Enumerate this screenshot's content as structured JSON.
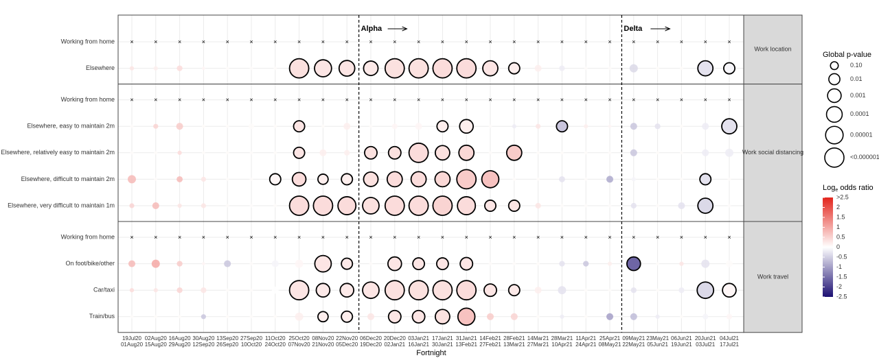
{
  "chart_data": {
    "type": "bubble-grid",
    "x_label": "Fortnight",
    "categories": [
      [
        "19Jul20",
        "01Aug20"
      ],
      [
        "02Aug20",
        "15Aug20"
      ],
      [
        "16Aug20",
        "29Aug20"
      ],
      [
        "30Aug20",
        "12Sep20"
      ],
      [
        "13Sep20",
        "26Sep20"
      ],
      [
        "27Sep20",
        "10Oct20"
      ],
      [
        "11Oct20",
        "24Oct20"
      ],
      [
        "25Oct20",
        "07Nov20"
      ],
      [
        "08Nov20",
        "21Nov20"
      ],
      [
        "22Nov20",
        "05Dec20"
      ],
      [
        "06Dec20",
        "19Dec20"
      ],
      [
        "20Dec20",
        "02Jan21"
      ],
      [
        "03Jan21",
        "16Jan21"
      ],
      [
        "17Jan21",
        "30Jan21"
      ],
      [
        "31Jan21",
        "13Feb21"
      ],
      [
        "14Feb21",
        "27Feb21"
      ],
      [
        "28Feb21",
        "13Mar21"
      ],
      [
        "14Mar21",
        "27Mar21"
      ],
      [
        "28Mar21",
        "10Apr21"
      ],
      [
        "11Apr21",
        "24Apr21"
      ],
      [
        "25Apr21",
        "08May21"
      ],
      [
        "09May21",
        "22May21"
      ],
      [
        "23May21",
        "05Jun21"
      ],
      [
        "06Jun21",
        "19Jun21"
      ],
      [
        "20Jun21",
        "03Jul21"
      ],
      [
        "04Jul21",
        "17Jul21"
      ]
    ],
    "annotations": [
      "Alpha",
      "Delta"
    ],
    "reference_marker": "×",
    "panels": [
      {
        "label": "Work location",
        "rows": [
          {
            "name": "Working from home",
            "reference": true
          },
          {
            "name": "Elsewhere",
            "log_odds": [
              0.3,
              0.2,
              0.4,
              0.1,
              0.05,
              0.05,
              0.05,
              0.35,
              0.3,
              0.3,
              0.25,
              0.35,
              0.35,
              0.4,
              0.4,
              0.3,
              0.2,
              0.2,
              -0.2,
              0.05,
              0.05,
              -0.4,
              0.05,
              0.05,
              -0.3,
              -0.1
            ],
            "p": [
              0.5,
              0.5,
              0.3,
              0.65,
              0.65,
              0.65,
              0.65,
              1e-06,
              2e-05,
              0.0001,
              0.0004,
              1e-06,
              1e-06,
              1e-06,
              1e-06,
              0.0002,
              0.01,
              0.17,
              0.3,
              0.65,
              0.65,
              0.08,
              0.65,
              0.65,
              0.0002,
              0.01
            ]
          }
        ]
      },
      {
        "label": "Work social distancing",
        "rows": [
          {
            "name": "Working from home",
            "reference": true
          },
          {
            "name": "Elsewhere, easy to maintain 2m",
            "log_odds": [
              0.05,
              0.5,
              0.6,
              0.05,
              0.05,
              0.05,
              0.05,
              0.3,
              0.05,
              0.2,
              0.05,
              0.1,
              0.1,
              0.2,
              0.2,
              0.05,
              -0.2,
              0.3,
              -0.6,
              0.2,
              0.1,
              -0.6,
              -0.3,
              0.05,
              -0.2,
              -0.3
            ],
            "p": [
              0.65,
              0.4,
              0.17,
              0.65,
              0.65,
              0.3,
              0.65,
              0.01,
              0.65,
              0.17,
              0.65,
              0.3,
              0.17,
              0.01,
              0.001,
              0.65,
              0.5,
              0.4,
              0.01,
              0.5,
              0.65,
              0.17,
              0.3,
              0.65,
              0.17,
              0.0002
            ]
          },
          {
            "name": "Elsewhere, relatively easy to maintain 2m",
            "log_odds": [
              0.05,
              0.05,
              0.4,
              0.05,
              0.05,
              0.05,
              0.05,
              0.3,
              0.2,
              0.2,
              0.35,
              0.35,
              0.4,
              0.35,
              0.45,
              0.05,
              0.6,
              0.05,
              0.05,
              0.05,
              0.05,
              -0.6,
              0.05,
              0.05,
              -0.2,
              -0.2
            ],
            "p": [
              0.65,
              0.65,
              0.5,
              0.65,
              0.65,
              0.65,
              0.65,
              0.01,
              0.17,
              0.3,
              0.003,
              0.003,
              1e-06,
              0.0004,
              0.0002,
              0.65,
              0.0002,
              0.65,
              0.65,
              0.65,
              0.65,
              0.17,
              0.65,
              0.65,
              0.17,
              0.08
            ]
          },
          {
            "name": "Elsewhere, difficult to maintain 2m",
            "log_odds": [
              0.8,
              0.05,
              0.8,
              0.3,
              0.05,
              0.05,
              0.1,
              0.4,
              0.2,
              0.2,
              0.35,
              0.4,
              0.4,
              0.45,
              0.6,
              0.7,
              0.05,
              0.05,
              -0.3,
              0.05,
              -0.9,
              -0.1,
              0.05,
              0.05,
              -0.3,
              0.05
            ],
            "p": [
              0.08,
              0.65,
              0.25,
              0.4,
              0.65,
              0.65,
              0.01,
              0.001,
              0.02,
              0.01,
              0.0004,
              0.0002,
              0.0002,
              0.0002,
              1e-06,
              2e-05,
              0.65,
              0.65,
              0.25,
              0.65,
              0.17,
              0.5,
              0.65,
              0.65,
              0.01,
              0.65
            ]
          },
          {
            "name": "Elsewhere, very difficult to maintain 1m",
            "log_odds": [
              0.5,
              0.8,
              0.3,
              0.3,
              0.05,
              0.05,
              0.05,
              0.4,
              0.4,
              0.4,
              0.35,
              0.4,
              0.4,
              0.5,
              0.4,
              0.3,
              0.3,
              0.3,
              0.05,
              0.05,
              0.05,
              -0.3,
              0.05,
              -0.3,
              -0.4,
              0.05
            ],
            "p": [
              0.4,
              0.17,
              0.5,
              0.4,
              0.65,
              0.65,
              0.65,
              1e-06,
              1e-06,
              6e-06,
              4e-05,
              1e-06,
              1e-06,
              1e-06,
              6e-06,
              0.01,
              0.01,
              0.3,
              0.65,
              0.65,
              0.65,
              0.3,
              0.65,
              0.17,
              0.0002,
              0.65
            ]
          }
        ]
      },
      {
        "label": "Work travel",
        "rows": [
          {
            "name": "Working from home",
            "reference": true
          },
          {
            "name": "On foot/bike/other",
            "log_odds": [
              0.8,
              1.0,
              0.6,
              0.1,
              -0.6,
              0.05,
              -0.1,
              0.1,
              0.3,
              0.25,
              0.05,
              0.3,
              0.3,
              0.3,
              0.3,
              0.05,
              0.05,
              0.05,
              -0.3,
              -0.6,
              0.2,
              -1.6,
              0.05,
              0.3,
              -0.3,
              0.05
            ],
            "p": [
              0.17,
              0.08,
              0.3,
              0.65,
              0.17,
              0.65,
              0.17,
              0.08,
              4e-05,
              0.01,
              0.65,
              0.001,
              0.006,
              0.006,
              0.003,
              0.65,
              0.65,
              0.65,
              0.3,
              0.3,
              0.5,
              0.001,
              0.65,
              0.5,
              0.08,
              0.17
            ]
          },
          {
            "name": "Car/taxi",
            "log_odds": [
              0.4,
              0.3,
              0.5,
              0.3,
              0.05,
              0.05,
              0,
              0.3,
              0.25,
              0.25,
              0.3,
              0.35,
              0.35,
              0.35,
              0.4,
              0.3,
              0.25,
              0.2,
              -0.3,
              0.05,
              0.05,
              -0.3,
              0.05,
              -0.2,
              -0.4,
              0.1
            ],
            "p": [
              0.5,
              0.5,
              0.3,
              0.3,
              0.65,
              0.65,
              0.17,
              1e-06,
              0.001,
              0.001,
              4e-05,
              1e-06,
              1e-06,
              1e-06,
              1e-06,
              0.003,
              0.01,
              0.17,
              0.08,
              0.65,
              0.65,
              0.3,
              0.65,
              0.3,
              4e-05,
              0.001
            ]
          },
          {
            "name": "Train/bus",
            "log_odds": [
              0.05,
              0.05,
              0.05,
              -0.6,
              0.05,
              0.05,
              0.05,
              0.2,
              0.2,
              0.2,
              0.3,
              0.3,
              0.3,
              0.35,
              0.7,
              0.6,
              0.5,
              0.05,
              -0.2,
              0.05,
              -1.0,
              -0.7,
              -0.2,
              0.05,
              -0.1,
              0.1
            ],
            "p": [
              0.65,
              0.65,
              0.65,
              0.4,
              0.65,
              0.65,
              0.65,
              0.08,
              0.02,
              0.01,
              0.17,
              0.003,
              0.003,
              0.0004,
              2e-05,
              0.17,
              0.17,
              0.65,
              0.5,
              0.65,
              0.17,
              0.17,
              0.5,
              0.65,
              0.3,
              0.3
            ]
          }
        ]
      }
    ],
    "size_legend_title": "Global p-value",
    "size_breaks": [
      {
        "value": 0.1,
        "label": "0.10"
      },
      0.01,
      0.001,
      0.0001,
      1e-05,
      {
        "value": 1e-06,
        "label": "<0.000001"
      }
    ],
    "color_legend_title": [
      "Log",
      "e",
      " odds ratio"
    ],
    "color_lim": [
      -2.5,
      2.5
    ],
    "color_ticks": [
      {
        "value": 2.5,
        "label": ">2.5"
      },
      2,
      1.5,
      1,
      0.5,
      0,
      -0.5,
      -1,
      -1.5,
      -2,
      -2.5
    ],
    "colors": {
      "low": "#1c0f72",
      "mid": "#ffffff",
      "high": "#e3261d"
    }
  }
}
